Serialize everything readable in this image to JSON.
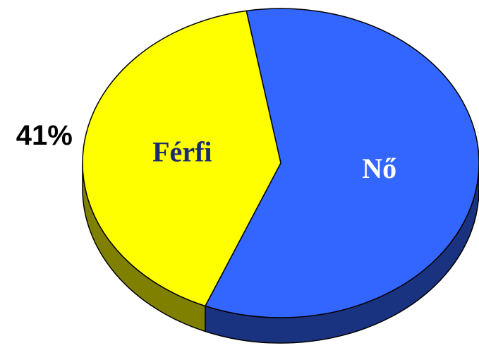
{
  "chart_data": {
    "type": "pie3d",
    "categories": [
      "Nő",
      "Férfi"
    ],
    "values": [
      59,
      41
    ],
    "value_labels": [
      null,
      "41%"
    ],
    "colors": [
      "#3366ff",
      "#ffff00"
    ],
    "label_colors": [
      "#ffffff",
      "#1c2a70"
    ]
  }
}
